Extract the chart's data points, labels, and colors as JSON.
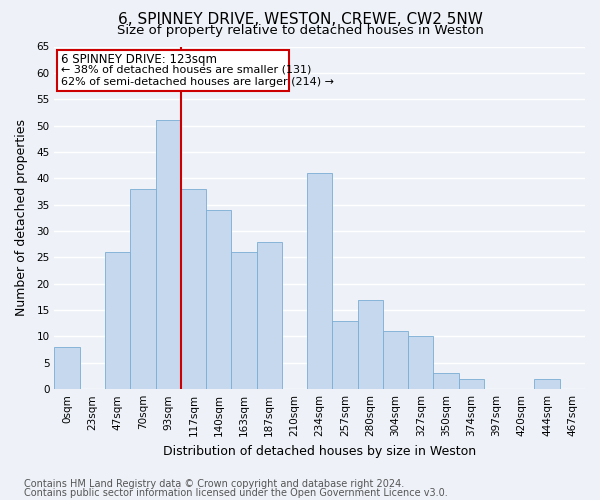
{
  "title": "6, SPINNEY DRIVE, WESTON, CREWE, CW2 5NW",
  "subtitle": "Size of property relative to detached houses in Weston",
  "xlabel": "Distribution of detached houses by size in Weston",
  "ylabel": "Number of detached properties",
  "bar_color": "#c5d8ed",
  "bar_edge_color": "#7aadd4",
  "categories": [
    "0sqm",
    "23sqm",
    "47sqm",
    "70sqm",
    "93sqm",
    "117sqm",
    "140sqm",
    "163sqm",
    "187sqm",
    "210sqm",
    "234sqm",
    "257sqm",
    "280sqm",
    "304sqm",
    "327sqm",
    "350sqm",
    "374sqm",
    "397sqm",
    "420sqm",
    "444sqm",
    "467sqm"
  ],
  "values": [
    8,
    0,
    26,
    38,
    51,
    38,
    34,
    26,
    28,
    0,
    41,
    13,
    17,
    11,
    10,
    3,
    2,
    0,
    0,
    2,
    0
  ],
  "ylim": [
    0,
    65
  ],
  "yticks": [
    0,
    5,
    10,
    15,
    20,
    25,
    30,
    35,
    40,
    45,
    50,
    55,
    60,
    65
  ],
  "vline_x": 4.5,
  "vline_color": "#cc0000",
  "annotation_line1": "6 SPINNEY DRIVE: 123sqm",
  "annotation_line2": "← 38% of detached houses are smaller (131)",
  "annotation_line3": "62% of semi-detached houses are larger (214) →",
  "footer_line1": "Contains HM Land Registry data © Crown copyright and database right 2024.",
  "footer_line2": "Contains public sector information licensed under the Open Government Licence v3.0.",
  "background_color": "#eef2f8",
  "plot_bg_color": "#eef2f8",
  "grid_color": "#ffffff",
  "title_fontsize": 11,
  "subtitle_fontsize": 9.5,
  "xlabel_fontsize": 9,
  "ylabel_fontsize": 9,
  "tick_fontsize": 7.5,
  "footer_fontsize": 7,
  "annotation_fontsize": 8.5
}
